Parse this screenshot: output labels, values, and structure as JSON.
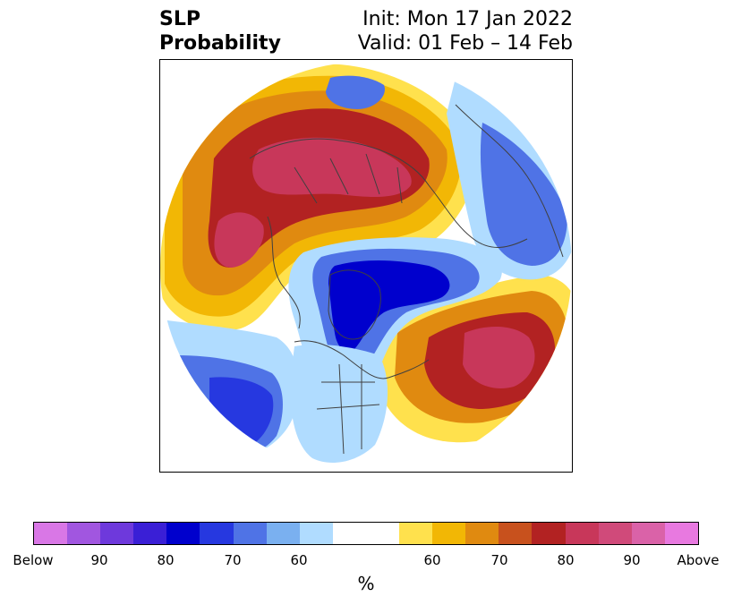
{
  "title": {
    "left_line1": "SLP",
    "left_line2": "Probability",
    "right_line1": "Init: Mon 17 Jan 2022",
    "right_line2": "Valid: 01 Feb – 14 Feb"
  },
  "map": {
    "projection": "north-polar-stereographic",
    "features": [
      "coastlines",
      "country-borders",
      "us-state-borders"
    ],
    "colors": {
      "below_high": "#0000cd",
      "below_mid": "#4a6ee6",
      "below_low": "#a8d8ff",
      "above_low": "#ffe14d",
      "above_mid": "#e08a10",
      "above_high": "#b22222",
      "above_max": "#c8375a",
      "coastline": "#404040"
    }
  },
  "colorbar": {
    "unit": "%",
    "colors": [
      "#d977e6",
      "#a156e0",
      "#6e39dc",
      "#3a1fd6",
      "#0000cd",
      "#2638e0",
      "#4f73e6",
      "#7ab0f0",
      "#b0dcff",
      "#ffffff",
      "#ffffff",
      "#ffe14d",
      "#f2b705",
      "#e08a10",
      "#c8511d",
      "#b22222",
      "#c8375a",
      "#d04a7a",
      "#da62a8",
      "#e879e0"
    ],
    "tick_labels": [
      "Below",
      "90",
      "80",
      "70",
      "60",
      "60",
      "70",
      "80",
      "90",
      "Above"
    ]
  }
}
